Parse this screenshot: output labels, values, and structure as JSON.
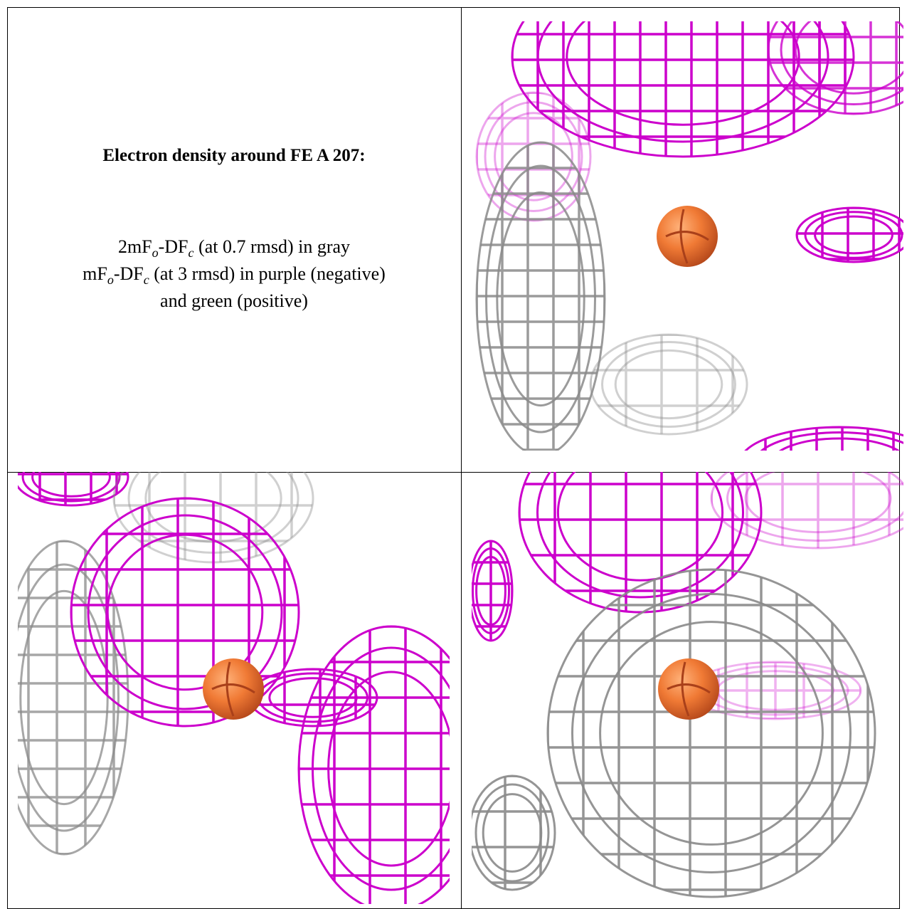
{
  "figure": {
    "title": "Electron density around FE A 207:",
    "legend": [
      [
        {
          "text": "2mF"
        },
        {
          "sub": "o"
        },
        {
          "text": "-DF"
        },
        {
          "sub": "c"
        },
        {
          "text": " (at 0.7 rmsd) in gray"
        }
      ],
      [
        {
          "text": "mF"
        },
        {
          "sub": "o"
        },
        {
          "text": "-DF"
        },
        {
          "sub": "c"
        },
        {
          "text": " (at 3 rmsd) in purple (negative)"
        }
      ],
      [
        {
          "text": "and green (positive)"
        }
      ]
    ]
  }
}
